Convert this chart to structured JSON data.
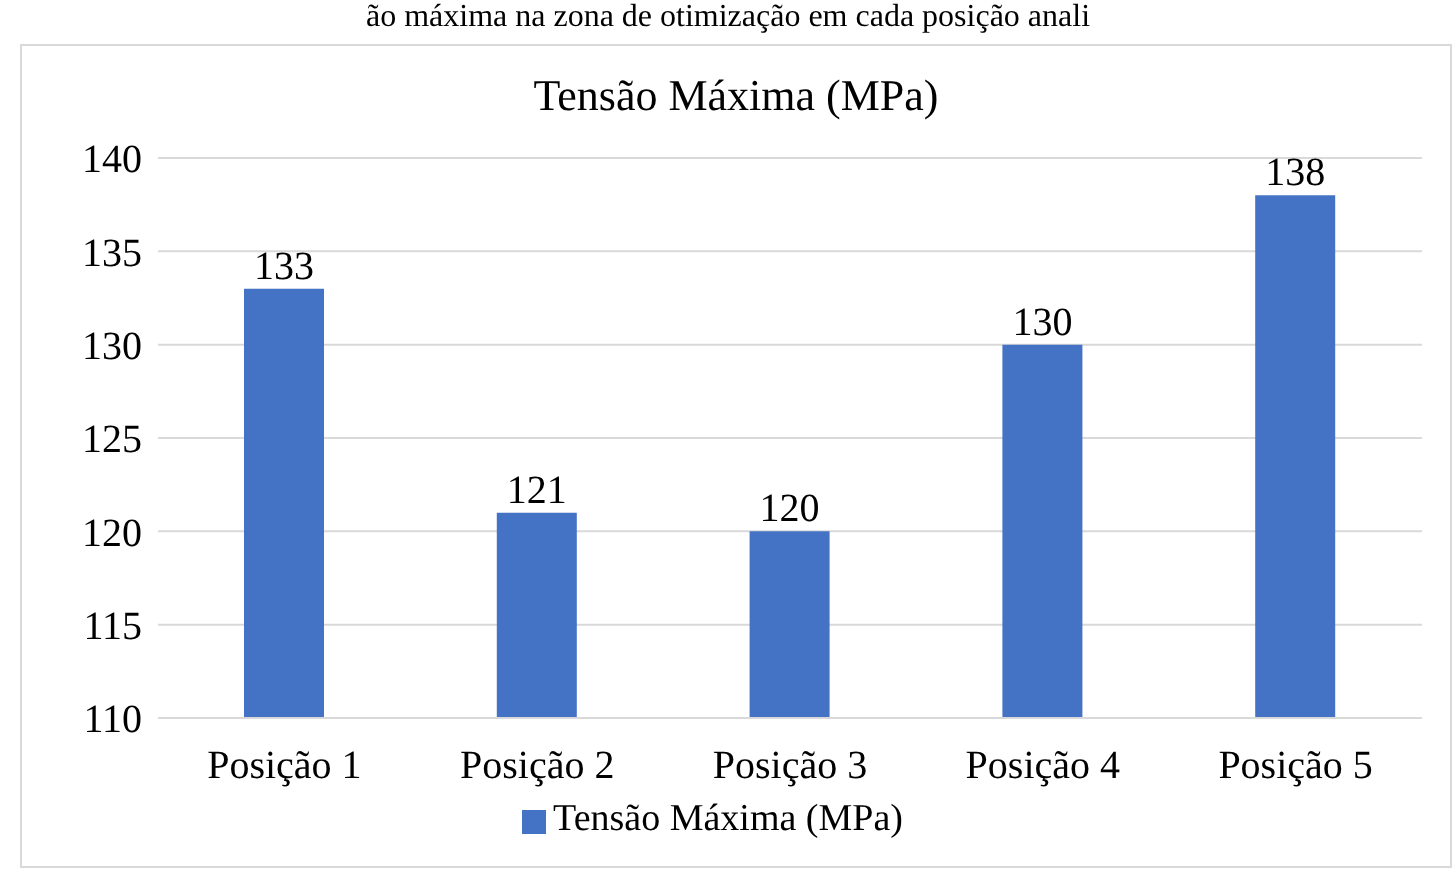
{
  "chart_data": {
    "type": "bar",
    "title": "Tensão Máxima (MPa)",
    "annotations": [
      "ão máxima na zona de otimização em cada posição anali"
    ],
    "categories": [
      "Posição 1",
      "Posição 2",
      "Posição 3",
      "Posição 4",
      "Posição 5"
    ],
    "series": [
      {
        "name": "Tensão Máxima (MPa)",
        "color": "#4472c4",
        "values": [
          133,
          121,
          120,
          130,
          138
        ]
      }
    ],
    "ylim": [
      110,
      140
    ],
    "yticks": [
      110,
      115,
      120,
      125,
      130,
      135,
      140
    ],
    "grid": "y",
    "legend": "bottom",
    "data_labels": true
  }
}
